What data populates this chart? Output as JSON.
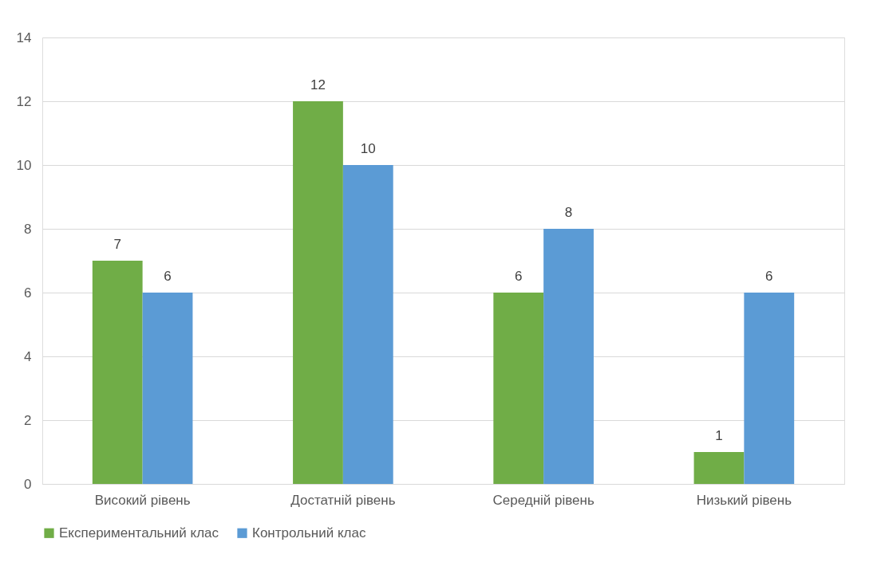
{
  "chart_data": {
    "type": "bar",
    "categories": [
      "Високий рівень",
      "Достатній рівень",
      "Середній рівень",
      "Низький рівень"
    ],
    "series": [
      {
        "name": "Експериментальний клас",
        "color": "#70ad47",
        "values": [
          7,
          12,
          6,
          1
        ]
      },
      {
        "name": "Контрольний клас",
        "color": "#5b9bd5",
        "values": [
          6,
          10,
          8,
          6
        ]
      }
    ],
    "ylim": [
      0,
      14
    ],
    "yticks": [
      0,
      2,
      4,
      6,
      8,
      10,
      12,
      14
    ],
    "grid": "y",
    "legend": "bottom",
    "data_labels": true
  }
}
